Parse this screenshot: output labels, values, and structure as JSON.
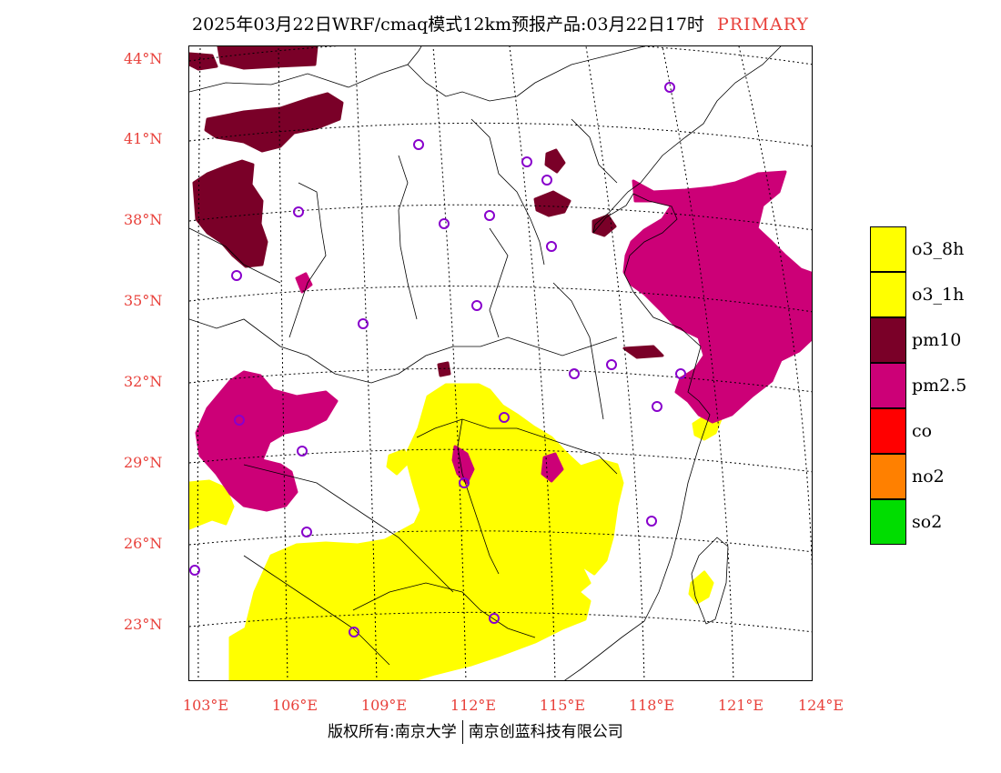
{
  "header": {
    "title": "2025年03月22日WRF/cmaq模式12km预报产品:03月22日17时",
    "tag": "PRIMARY"
  },
  "axes": {
    "lat_labels": [
      "44°N",
      "41°N",
      "38°N",
      "35°N",
      "32°N",
      "29°N",
      "26°N",
      "23°N"
    ],
    "lon_labels": [
      "103°E",
      "106°E",
      "109°E",
      "112°E",
      "115°E",
      "118°E",
      "121°E",
      "124°E"
    ]
  },
  "legend": {
    "items": [
      {
        "label": "o3_8h",
        "color": "#ffff00"
      },
      {
        "label": "o3_1h",
        "color": "#ffff00"
      },
      {
        "label": "pm10",
        "color": "#7a0028"
      },
      {
        "label": "pm2.5",
        "color": "#cc0077"
      },
      {
        "label": "co",
        "color": "#ff0000"
      },
      {
        "label": "no2",
        "color": "#ff8000"
      },
      {
        "label": "so2",
        "color": "#00dd00"
      }
    ]
  },
  "footer": {
    "left": "版权所有:南京大学",
    "right": "南京创蓝科技有限公司"
  },
  "colors": {
    "axis_label": "#e8403a",
    "station_marker": "#8800cc"
  }
}
